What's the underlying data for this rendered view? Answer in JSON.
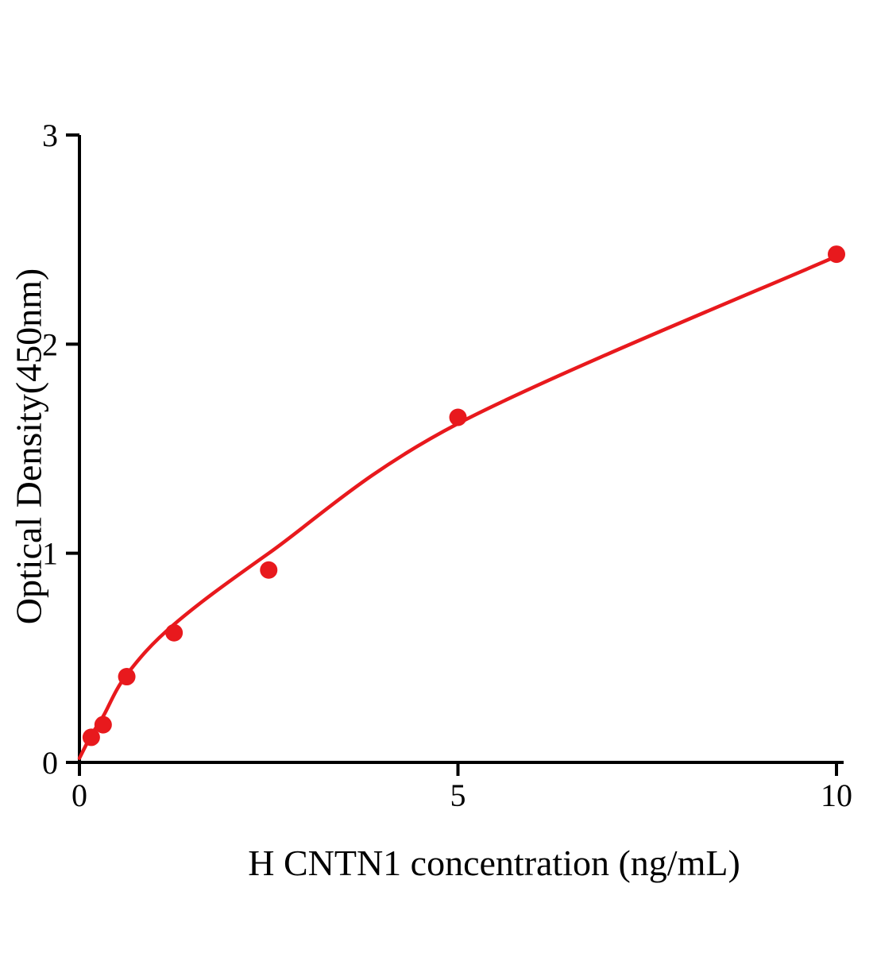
{
  "chart_data": {
    "type": "scatter",
    "title": "",
    "xlabel": "H CNTN1 concentration (ng/mL)",
    "ylabel": "Optical Density(450nm)",
    "xlim": [
      0,
      10.1
    ],
    "ylim": [
      0,
      3
    ],
    "x_ticks": [
      0,
      5,
      10
    ],
    "y_ticks": [
      0,
      1,
      2,
      3
    ],
    "grid": false,
    "legend": false,
    "accent_color": "#e8191d",
    "axis_color": "#000000",
    "series": [
      {
        "name": "standard-points",
        "type": "scatter",
        "color": "#e8191d",
        "x": [
          0.156,
          0.313,
          0.625,
          1.25,
          2.5,
          5,
          10
        ],
        "y": [
          0.12,
          0.18,
          0.41,
          0.62,
          0.92,
          1.65,
          2.43
        ]
      },
      {
        "name": "fit-curve",
        "type": "line",
        "color": "#e8191d",
        "x": [
          0,
          0.156,
          0.313,
          0.625,
          1.25,
          2.5,
          5,
          10
        ],
        "y": [
          0.02,
          0.13,
          0.22,
          0.42,
          0.66,
          1.0,
          1.62,
          2.42
        ]
      }
    ]
  }
}
